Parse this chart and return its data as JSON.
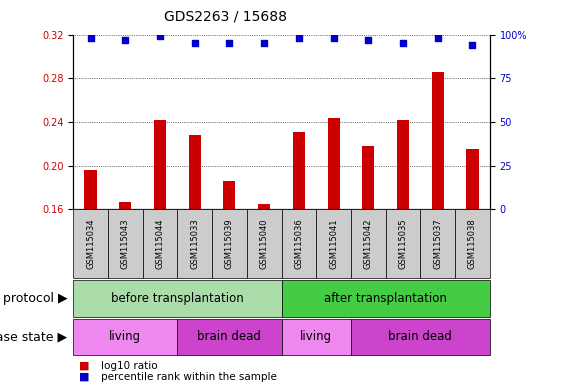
{
  "title": "GDS2263 / 15688",
  "samples": [
    "GSM115034",
    "GSM115043",
    "GSM115044",
    "GSM115033",
    "GSM115039",
    "GSM115040",
    "GSM115036",
    "GSM115041",
    "GSM115042",
    "GSM115035",
    "GSM115037",
    "GSM115038"
  ],
  "log10_ratio": [
    0.196,
    0.167,
    0.242,
    0.228,
    0.186,
    0.165,
    0.231,
    0.244,
    0.218,
    0.242,
    0.286,
    0.215
  ],
  "percentile_rank": [
    98,
    97,
    99,
    95,
    95,
    95,
    98,
    98,
    97,
    95,
    98,
    94
  ],
  "ylim_left": [
    0.16,
    0.32
  ],
  "ylim_right": [
    0,
    100
  ],
  "yticks_left": [
    0.16,
    0.2,
    0.24,
    0.28,
    0.32
  ],
  "yticks_right": [
    0,
    25,
    50,
    75,
    100
  ],
  "bar_color": "#cc0000",
  "dot_color": "#0000cc",
  "protocol_groups": [
    {
      "label": "before transplantation",
      "start": 0,
      "end": 6,
      "color": "#aaddaa"
    },
    {
      "label": "after transplantation",
      "start": 6,
      "end": 12,
      "color": "#44cc44"
    }
  ],
  "disease_groups": [
    {
      "label": "living",
      "start": 0,
      "end": 3,
      "color": "#ee88ee"
    },
    {
      "label": "brain dead",
      "start": 3,
      "end": 6,
      "color": "#cc44cc"
    },
    {
      "label": "living",
      "start": 6,
      "end": 8,
      "color": "#ee88ee"
    },
    {
      "label": "brain dead",
      "start": 8,
      "end": 12,
      "color": "#cc44cc"
    }
  ],
  "protocol_label": "protocol",
  "disease_label": "disease state",
  "legend_bar_label": "log10 ratio",
  "legend_dot_label": "percentile rank within the sample",
  "title_fontsize": 10,
  "tick_fontsize": 7,
  "label_fontsize": 9,
  "annotation_fontsize": 8.5
}
